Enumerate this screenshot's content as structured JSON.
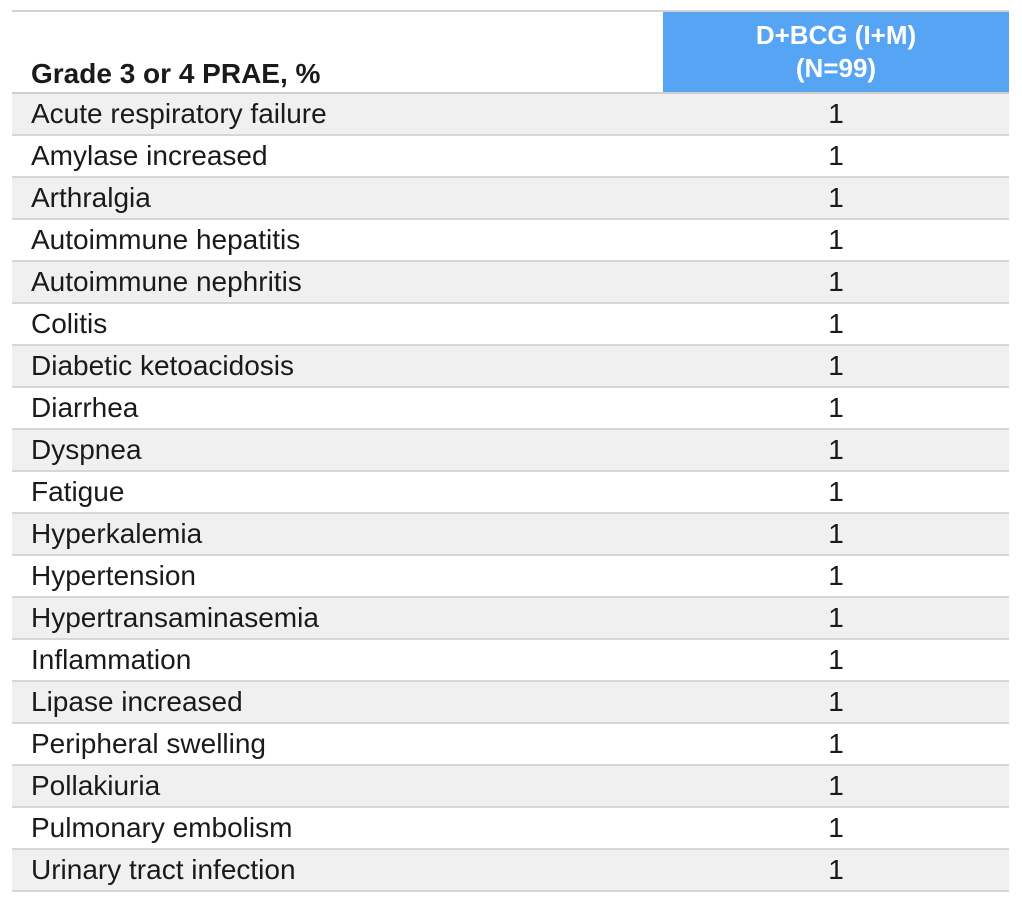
{
  "table": {
    "header_label": "Grade 3 or 4 PRAE, %",
    "column_line1": "D+BCG (I+M)",
    "column_line2": "(N=99)",
    "rows": [
      {
        "name": "Acute respiratory failure",
        "value": "1"
      },
      {
        "name": "Amylase increased",
        "value": "1"
      },
      {
        "name": "Arthralgia",
        "value": "1"
      },
      {
        "name": "Autoimmune hepatitis",
        "value": "1"
      },
      {
        "name": "Autoimmune nephritis",
        "value": "1"
      },
      {
        "name": "Colitis",
        "value": "1"
      },
      {
        "name": "Diabetic ketoacidosis",
        "value": "1"
      },
      {
        "name": "Diarrhea",
        "value": "1"
      },
      {
        "name": "Dyspnea",
        "value": "1"
      },
      {
        "name": "Fatigue",
        "value": "1"
      },
      {
        "name": "Hyperkalemia",
        "value": "1"
      },
      {
        "name": "Hypertension",
        "value": "1"
      },
      {
        "name": "Hypertransaminasemia",
        "value": "1"
      },
      {
        "name": "Inflammation",
        "value": "1"
      },
      {
        "name": "Lipase increased",
        "value": "1"
      },
      {
        "name": "Peripheral swelling",
        "value": "1"
      },
      {
        "name": "Pollakiuria",
        "value": "1"
      },
      {
        "name": "Pulmonary embolism",
        "value": "1"
      },
      {
        "name": "Urinary tract infection",
        "value": "1"
      }
    ]
  },
  "colors": {
    "header_accent": "#56a5f5",
    "row_shade": "#f0f0f0"
  }
}
